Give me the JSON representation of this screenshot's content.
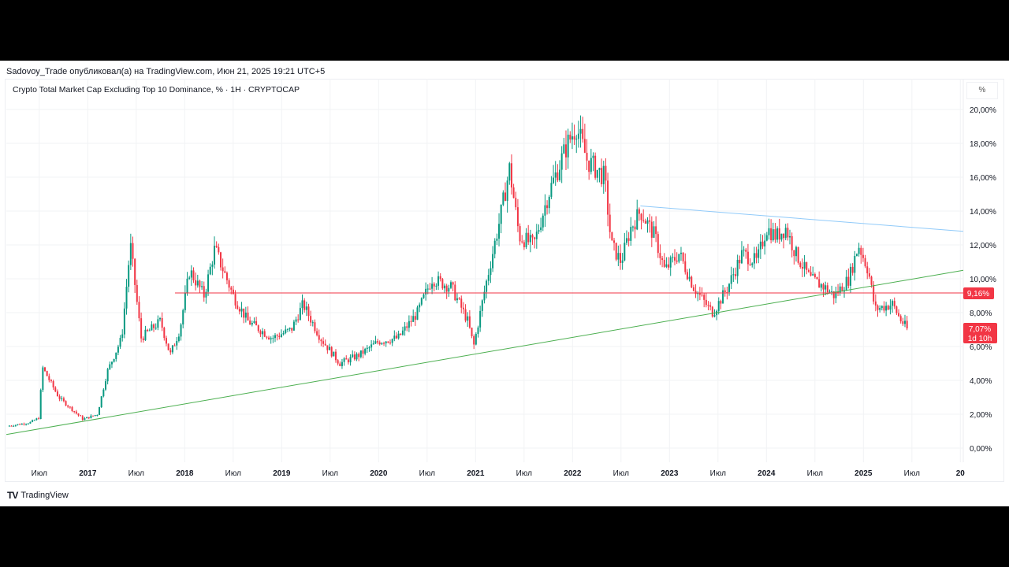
{
  "header": {
    "published": "Sadovoy_Trade опубликовал(а) на TradingView.com, Июн 21, 2025 19:21 UTC+5",
    "logo": "TradingView"
  },
  "chart_data": {
    "type": "candlestick",
    "title": "Crypto Total Market Cap Excluding Top 10 Dominance, % · 1H · CRYPTOCAP",
    "unit": "%",
    "y_ticks": [
      "20,00%",
      "18,00%",
      "16,00%",
      "14,00%",
      "12,00%",
      "10,00%",
      "8,00%",
      "6,00%",
      "4,00%",
      "2,00%",
      "0,00%"
    ],
    "y_tick_values": [
      20,
      18,
      16,
      14,
      12,
      10,
      8,
      6,
      4,
      2,
      0
    ],
    "ylim": [
      -0.2,
      21.5
    ],
    "xlim": [
      2016.16,
      2026.03
    ],
    "x_ticks": [
      {
        "t": 2016.5,
        "label": "Июл"
      },
      {
        "t": 2017,
        "label": "2017"
      },
      {
        "t": 2017.5,
        "label": "Июл"
      },
      {
        "t": 2018,
        "label": "2018"
      },
      {
        "t": 2018.5,
        "label": "Июл"
      },
      {
        "t": 2019,
        "label": "2019"
      },
      {
        "t": 2019.5,
        "label": "Июл"
      },
      {
        "t": 2020,
        "label": "2020"
      },
      {
        "t": 2020.5,
        "label": "Июл"
      },
      {
        "t": 2021,
        "label": "2021"
      },
      {
        "t": 2021.5,
        "label": "Июл"
      },
      {
        "t": 2022,
        "label": "2022"
      },
      {
        "t": 2022.5,
        "label": "Июл"
      },
      {
        "t": 2023,
        "label": "2023"
      },
      {
        "t": 2023.5,
        "label": "Июл"
      },
      {
        "t": 2024,
        "label": "2024"
      },
      {
        "t": 2024.5,
        "label": "Июл"
      },
      {
        "t": 2025,
        "label": "2025"
      },
      {
        "t": 2025.5,
        "label": "Июл"
      },
      {
        "t": 2026,
        "label": "20"
      }
    ],
    "series": [
      [
        2016.17,
        1.3
      ],
      [
        2016.4,
        1.5
      ],
      [
        2016.5,
        1.8
      ],
      [
        2016.53,
        4.8
      ],
      [
        2016.7,
        3.0
      ],
      [
        2016.95,
        1.7
      ],
      [
        2017.1,
        2.0
      ],
      [
        2017.2,
        4.5
      ],
      [
        2017.35,
        6.5
      ],
      [
        2017.44,
        12.0
      ],
      [
        2017.55,
        6.5
      ],
      [
        2017.75,
        7.5
      ],
      [
        2017.85,
        5.5
      ],
      [
        2017.95,
        7.0
      ],
      [
        2018.05,
        10.5
      ],
      [
        2018.2,
        9.0
      ],
      [
        2018.31,
        11.8
      ],
      [
        2018.5,
        9.0
      ],
      [
        2018.65,
        7.5
      ],
      [
        2018.9,
        6.5
      ],
      [
        2019.1,
        7.0
      ],
      [
        2019.22,
        8.5
      ],
      [
        2019.4,
        6.5
      ],
      [
        2019.6,
        5.0
      ],
      [
        2019.8,
        5.5
      ],
      [
        2020.0,
        6.3
      ],
      [
        2020.2,
        6.5
      ],
      [
        2020.4,
        8.0
      ],
      [
        2020.55,
        10.0
      ],
      [
        2020.75,
        9.5
      ],
      [
        2020.92,
        7.5
      ],
      [
        2020.98,
        6.0
      ],
      [
        2021.1,
        9.5
      ],
      [
        2021.25,
        13.5
      ],
      [
        2021.35,
        16.5
      ],
      [
        2021.45,
        12.5
      ],
      [
        2021.6,
        12.0
      ],
      [
        2021.75,
        15.0
      ],
      [
        2021.95,
        18.0
      ],
      [
        2022.04,
        19.0
      ],
      [
        2022.15,
        17.0
      ],
      [
        2022.33,
        16.0
      ],
      [
        2022.4,
        12.0
      ],
      [
        2022.5,
        11.0
      ],
      [
        2022.6,
        13.0
      ],
      [
        2022.7,
        14.0
      ],
      [
        2022.85,
        12.5
      ],
      [
        2022.95,
        10.5
      ],
      [
        2023.1,
        11.5
      ],
      [
        2023.25,
        9.5
      ],
      [
        2023.4,
        8.3
      ],
      [
        2023.45,
        8.0
      ],
      [
        2023.6,
        9.5
      ],
      [
        2023.75,
        11.5
      ],
      [
        2023.9,
        11.0
      ],
      [
        2024.0,
        13.0
      ],
      [
        2024.1,
        12.5
      ],
      [
        2024.2,
        13.0
      ],
      [
        2024.3,
        11.5
      ],
      [
        2024.45,
        10.0
      ],
      [
        2024.6,
        9.5
      ],
      [
        2024.7,
        9.0
      ],
      [
        2024.85,
        10.0
      ],
      [
        2024.95,
        12.0
      ],
      [
        2025.05,
        10.5
      ],
      [
        2025.12,
        8.2
      ],
      [
        2025.3,
        8.5
      ],
      [
        2025.38,
        7.6
      ],
      [
        2025.45,
        7.07
      ]
    ],
    "lines": [
      {
        "name": "support-trendline",
        "color": "#4caf50",
        "from": [
          2016.16,
          0.8
        ],
        "to": [
          2026.03,
          10.5
        ]
      },
      {
        "name": "resistance-trendline",
        "color": "#90caf9",
        "from": [
          2022.7,
          14.3
        ],
        "to": [
          2026.03,
          12.8
        ]
      },
      {
        "name": "horizontal-level",
        "color": "#f23645",
        "from": [
          2017.9,
          9.16
        ],
        "to": [
          2026.03,
          9.16
        ]
      }
    ],
    "level_label": "9,16%",
    "last_price": "7,07%",
    "countdown": "1d 10h",
    "colors": {
      "up": "#089981",
      "down": "#f23645",
      "grid": "#f2f3f5"
    }
  }
}
